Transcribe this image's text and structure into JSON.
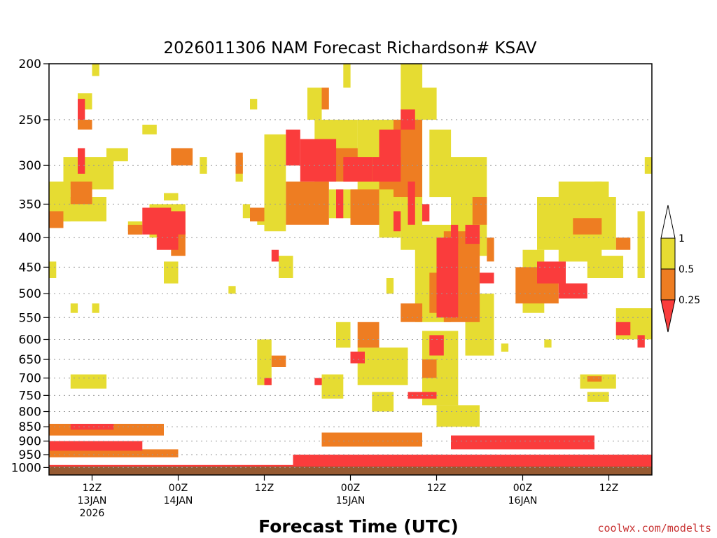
{
  "chart_data": {
    "type": "heatmap",
    "title": "2026011306 NAM Forecast Richardson# KSAV",
    "xlabel": "Forecast Time (UTC)",
    "ylabel": "",
    "y_axis": "pressure (hPa), log scale, inverted",
    "ylim": [
      1030,
      200
    ],
    "xlim_hours": [
      0,
      84
    ],
    "yticks": [
      200,
      250,
      300,
      350,
      400,
      450,
      500,
      550,
      600,
      650,
      700,
      750,
      800,
      850,
      900,
      950,
      1000
    ],
    "xticks": [
      {
        "hour": 6,
        "label": "12Z",
        "sub1": "13JAN",
        "sub2": "2026"
      },
      {
        "hour": 18,
        "label": "00Z",
        "sub1": "14JAN",
        "sub2": ""
      },
      {
        "hour": 30,
        "label": "12Z",
        "sub1": "",
        "sub2": ""
      },
      {
        "hour": 42,
        "label": "00Z",
        "sub1": "15JAN",
        "sub2": ""
      },
      {
        "hour": 54,
        "label": "12Z",
        "sub1": "",
        "sub2": ""
      },
      {
        "hour": 66,
        "label": "00Z",
        "sub1": "16JAN",
        "sub2": ""
      },
      {
        "hour": 78,
        "label": "12Z",
        "sub1": "",
        "sub2": ""
      }
    ],
    "grid": "dotted horizontal at pressure ticks",
    "colorbar": {
      "labels": [
        "1",
        "0.5",
        "0.25"
      ],
      "colors": {
        "lt_1": "#e6dc32",
        "lt_0_5": "#ee7d22",
        "lt_0_25": "#fa3c3c",
        "above": "#ffffff",
        "ground": "#965a32"
      }
    },
    "layers": {
      "yellow": [
        {
          "t": [
            0,
            3
          ],
          "p": [
            320,
            375
          ]
        },
        {
          "t": [
            2,
            8
          ],
          "p": [
            340,
            375
          ]
        },
        {
          "t": [
            2,
            9
          ],
          "p": [
            290,
            330
          ]
        },
        {
          "t": [
            4,
            6
          ],
          "p": [
            225,
            240
          ]
        },
        {
          "t": [
            6,
            7
          ],
          "p": [
            200,
            210
          ]
        },
        {
          "t": [
            8,
            11
          ],
          "p": [
            280,
            295
          ]
        },
        {
          "t": [
            13,
            15
          ],
          "p": [
            255,
            265
          ]
        },
        {
          "t": [
            11,
            13
          ],
          "p": [
            375,
            390
          ]
        },
        {
          "t": [
            14,
            19
          ],
          "p": [
            350,
            400
          ]
        },
        {
          "t": [
            16,
            18
          ],
          "p": [
            335,
            345
          ]
        },
        {
          "t": [
            21,
            22
          ],
          "p": [
            290,
            310
          ]
        },
        {
          "t": [
            16,
            18
          ],
          "p": [
            440,
            480
          ]
        },
        {
          "t": [
            25,
            26
          ],
          "p": [
            485,
            500
          ]
        },
        {
          "t": [
            3,
            8
          ],
          "p": [
            690,
            730
          ]
        },
        {
          "t": [
            3,
            4
          ],
          "p": [
            520,
            540
          ]
        },
        {
          "t": [
            6,
            7
          ],
          "p": [
            520,
            540
          ]
        },
        {
          "t": [
            0,
            1
          ],
          "p": [
            440,
            470
          ]
        },
        {
          "t": [
            26,
            27
          ],
          "p": [
            290,
            320
          ]
        },
        {
          "t": [
            28,
            29
          ],
          "p": [
            230,
            240
          ]
        },
        {
          "t": [
            27,
            28
          ],
          "p": [
            350,
            370
          ]
        },
        {
          "t": [
            29,
            30
          ],
          "p": [
            365,
            380
          ]
        },
        {
          "t": [
            30,
            33
          ],
          "p": [
            265,
            390
          ]
        },
        {
          "t": [
            32,
            34
          ],
          "p": [
            430,
            470
          ]
        },
        {
          "t": [
            29,
            31
          ],
          "p": [
            600,
            720
          ]
        },
        {
          "t": [
            35,
            37
          ],
          "p": [
            325,
            345
          ]
        },
        {
          "t": [
            36,
            38
          ],
          "p": [
            220,
            250
          ]
        },
        {
          "t": [
            37,
            43
          ],
          "p": [
            250,
            300
          ]
        },
        {
          "t": [
            39,
            45
          ],
          "p": [
            330,
            370
          ]
        },
        {
          "t": [
            41,
            42
          ],
          "p": [
            200,
            220
          ]
        },
        {
          "t": [
            38,
            41
          ],
          "p": [
            690,
            760
          ]
        },
        {
          "t": [
            40,
            42
          ],
          "p": [
            560,
            620
          ]
        },
        {
          "t": [
            43,
            49
          ],
          "p": [
            250,
            360
          ]
        },
        {
          "t": [
            46,
            49
          ],
          "p": [
            300,
            400
          ]
        },
        {
          "t": [
            43,
            50
          ],
          "p": [
            620,
            720
          ]
        },
        {
          "t": [
            45,
            48
          ],
          "p": [
            740,
            800
          ]
        },
        {
          "t": [
            47,
            48
          ],
          "p": [
            470,
            500
          ]
        },
        {
          "t": [
            49,
            52
          ],
          "p": [
            200,
            420
          ]
        },
        {
          "t": [
            51,
            54
          ],
          "p": [
            220,
            250
          ]
        },
        {
          "t": [
            51,
            56
          ],
          "p": [
            380,
            560
          ]
        },
        {
          "t": [
            53,
            56
          ],
          "p": [
            260,
            340
          ]
        },
        {
          "t": [
            55,
            58
          ],
          "p": [
            400,
            520
          ]
        },
        {
          "t": [
            56,
            61
          ],
          "p": [
            290,
            430
          ]
        },
        {
          "t": [
            58,
            62
          ],
          "p": [
            500,
            640
          ]
        },
        {
          "t": [
            52,
            57
          ],
          "p": [
            580,
            780
          ]
        },
        {
          "t": [
            54,
            60
          ],
          "p": [
            780,
            850
          ]
        },
        {
          "t": [
            63,
            64
          ],
          "p": [
            610,
            630
          ]
        },
        {
          "t": [
            66,
            69
          ],
          "p": [
            420,
            540
          ]
        },
        {
          "t": [
            69,
            70
          ],
          "p": [
            600,
            620
          ]
        },
        {
          "t": [
            68,
            79
          ],
          "p": [
            340,
            420
          ]
        },
        {
          "t": [
            71,
            77
          ],
          "p": [
            320,
            440
          ]
        },
        {
          "t": [
            76,
            78
          ],
          "p": [
            320,
            340
          ]
        },
        {
          "t": [
            75,
            80
          ],
          "p": [
            430,
            470
          ]
        },
        {
          "t": [
            82,
            83
          ],
          "p": [
            360,
            470
          ]
        },
        {
          "t": [
            83,
            84
          ],
          "p": [
            290,
            310
          ]
        },
        {
          "t": [
            79,
            84
          ],
          "p": [
            530,
            600
          ]
        },
        {
          "t": [
            74,
            79
          ],
          "p": [
            690,
            730
          ]
        },
        {
          "t": [
            75,
            78
          ],
          "p": [
            740,
            770
          ]
        }
      ],
      "orange": [
        {
          "t": [
            0,
            2
          ],
          "p": [
            360,
            385
          ]
        },
        {
          "t": [
            3,
            6
          ],
          "p": [
            320,
            350
          ]
        },
        {
          "t": [
            4,
            6
          ],
          "p": [
            250,
            260
          ]
        },
        {
          "t": [
            11,
            13
          ],
          "p": [
            380,
            395
          ]
        },
        {
          "t": [
            14,
            16
          ],
          "p": [
            370,
            395
          ]
        },
        {
          "t": [
            17,
            20
          ],
          "p": [
            280,
            300
          ]
        },
        {
          "t": [
            17,
            19
          ],
          "p": [
            390,
            430
          ]
        },
        {
          "t": [
            26,
            27
          ],
          "p": [
            285,
            310
          ]
        },
        {
          "t": [
            28,
            30
          ],
          "p": [
            355,
            375
          ]
        },
        {
          "t": [
            31,
            33
          ],
          "p": [
            640,
            670
          ]
        },
        {
          "t": [
            33,
            39
          ],
          "p": [
            320,
            380
          ]
        },
        {
          "t": [
            37,
            43
          ],
          "p": [
            280,
            320
          ]
        },
        {
          "t": [
            38,
            39
          ],
          "p": [
            220,
            240
          ]
        },
        {
          "t": [
            42,
            46
          ],
          "p": [
            330,
            380
          ]
        },
        {
          "t": [
            43,
            46
          ],
          "p": [
            560,
            620
          ]
        },
        {
          "t": [
            46,
            48
          ],
          "p": [
            270,
            330
          ]
        },
        {
          "t": [
            48,
            52
          ],
          "p": [
            250,
            340
          ]
        },
        {
          "t": [
            49,
            52
          ],
          "p": [
            520,
            560
          ]
        },
        {
          "t": [
            52,
            54
          ],
          "p": [
            650,
            700
          ]
        },
        {
          "t": [
            53,
            55
          ],
          "p": [
            460,
            540
          ]
        },
        {
          "t": [
            55,
            60
          ],
          "p": [
            390,
            560
          ]
        },
        {
          "t": [
            59,
            61
          ],
          "p": [
            340,
            380
          ]
        },
        {
          "t": [
            61,
            62
          ],
          "p": [
            400,
            440
          ]
        },
        {
          "t": [
            65,
            71
          ],
          "p": [
            450,
            520
          ]
        },
        {
          "t": [
            73,
            77
          ],
          "p": [
            370,
            395
          ]
        },
        {
          "t": [
            75,
            77
          ],
          "p": [
            695,
            710
          ]
        },
        {
          "t": [
            79,
            81
          ],
          "p": [
            400,
            420
          ]
        }
      ],
      "red": [
        {
          "t": [
            4,
            5
          ],
          "p": [
            230,
            250
          ]
        },
        {
          "t": [
            4,
            5
          ],
          "p": [
            280,
            310
          ]
        },
        {
          "t": [
            13,
            17
          ],
          "p": [
            355,
            395
          ]
        },
        {
          "t": [
            15,
            18
          ],
          "p": [
            360,
            420
          ]
        },
        {
          "t": [
            18,
            19
          ],
          "p": [
            360,
            395
          ]
        },
        {
          "t": [
            30,
            31
          ],
          "p": [
            700,
            720
          ]
        },
        {
          "t": [
            31,
            32
          ],
          "p": [
            420,
            440
          ]
        },
        {
          "t": [
            33,
            35
          ],
          "p": [
            260,
            300
          ]
        },
        {
          "t": [
            35,
            40
          ],
          "p": [
            270,
            320
          ]
        },
        {
          "t": [
            37,
            38
          ],
          "p": [
            700,
            720
          ]
        },
        {
          "t": [
            41,
            45
          ],
          "p": [
            290,
            320
          ]
        },
        {
          "t": [
            40,
            41
          ],
          "p": [
            330,
            370
          ]
        },
        {
          "t": [
            42,
            44
          ],
          "p": [
            630,
            660
          ]
        },
        {
          "t": [
            45,
            49
          ],
          "p": [
            290,
            320
          ]
        },
        {
          "t": [
            46,
            49
          ],
          "p": [
            260,
            300
          ]
        },
        {
          "t": [
            48,
            49
          ],
          "p": [
            360,
            390
          ]
        },
        {
          "t": [
            49,
            51
          ],
          "p": [
            240,
            260
          ]
        },
        {
          "t": [
            50,
            51
          ],
          "p": [
            320,
            380
          ]
        },
        {
          "t": [
            50,
            54
          ],
          "p": [
            740,
            760
          ]
        },
        {
          "t": [
            52,
            53
          ],
          "p": [
            350,
            375
          ]
        },
        {
          "t": [
            53,
            55
          ],
          "p": [
            590,
            640
          ]
        },
        {
          "t": [
            54,
            57
          ],
          "p": [
            400,
            550
          ]
        },
        {
          "t": [
            56,
            57
          ],
          "p": [
            380,
            410
          ]
        },
        {
          "t": [
            58,
            60
          ],
          "p": [
            380,
            410
          ]
        },
        {
          "t": [
            60,
            62
          ],
          "p": [
            460,
            480
          ]
        },
        {
          "t": [
            68,
            72
          ],
          "p": [
            440,
            480
          ]
        },
        {
          "t": [
            71,
            75
          ],
          "p": [
            480,
            510
          ]
        },
        {
          "t": [
            79,
            81
          ],
          "p": [
            560,
            590
          ]
        },
        {
          "t": [
            82,
            83
          ],
          "p": [
            590,
            620
          ]
        }
      ],
      "boundary_bands": [
        {
          "color": "red",
          "t": [
            0,
            84
          ],
          "p_start": 990,
          "p_end": 1012
        },
        {
          "color": "orange",
          "t": [
            0,
            18
          ],
          "p_start": 930,
          "p_end": 960
        },
        {
          "color": "red",
          "t": [
            0,
            13
          ],
          "p_start": 900,
          "p_end": 935
        },
        {
          "color": "orange",
          "t": [
            0,
            16
          ],
          "p_start": 840,
          "p_end": 880
        },
        {
          "color": "red",
          "t": [
            3,
            9
          ],
          "p_start": 840,
          "p_end": 860
        },
        {
          "color": "red",
          "t": [
            34,
            84
          ],
          "p_start": 950,
          "p_end": 1000
        },
        {
          "color": "orange",
          "t": [
            38,
            52
          ],
          "p_start": 870,
          "p_end": 920
        },
        {
          "color": "red",
          "t": [
            56,
            76
          ],
          "p_start": 880,
          "p_end": 930
        }
      ]
    }
  },
  "credit": "coolwx.com/modelts"
}
